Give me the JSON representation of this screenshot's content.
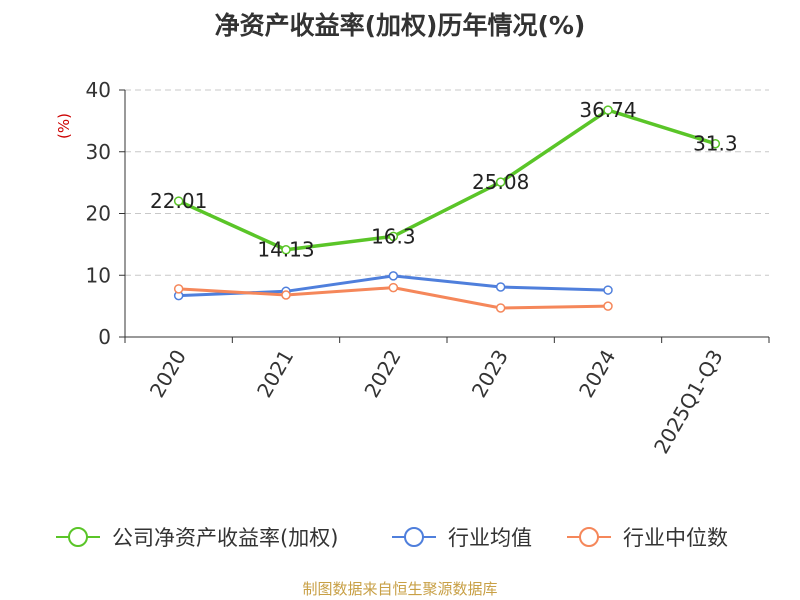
{
  "chart_data": {
    "type": "line",
    "title": "净资产收益率(加权)历年情况(%)",
    "ylabel": "(%)",
    "categories": [
      "2020",
      "2021",
      "2022",
      "2023",
      "2024",
      "2025Q1-Q3"
    ],
    "ylim": [
      0,
      40
    ],
    "yticks": [
      0,
      10,
      20,
      30,
      40
    ],
    "grid": true,
    "legend_position": "bottom",
    "series": [
      {
        "name": "公司净资产收益率(加权)",
        "color": "#5ac528",
        "values": [
          22.01,
          14.13,
          16.3,
          25.08,
          36.74,
          31.3
        ],
        "labels": [
          "22.01",
          "14.13",
          "16.3",
          "25.08",
          "36.74",
          "31.3"
        ]
      },
      {
        "name": "行业均值",
        "color": "#4f7fdc",
        "values": [
          6.7,
          7.4,
          9.9,
          8.1,
          7.6,
          null
        ]
      },
      {
        "name": "行业中位数",
        "color": "#f5875a",
        "values": [
          7.8,
          6.8,
          8.0,
          4.7,
          5.0,
          null
        ]
      }
    ],
    "ylabel_color": "#cc0000",
    "source_color": "#c8a046"
  },
  "footer": {
    "source": "制图数据来自恒生聚源数据库"
  }
}
